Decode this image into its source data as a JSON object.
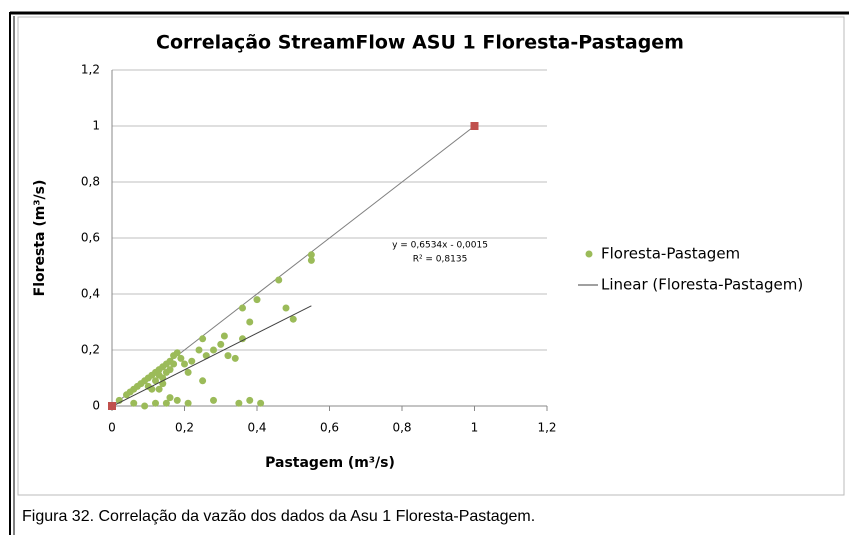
{
  "chart_data": {
    "type": "scatter",
    "title": "Correlação StreamFlow ASU 1 Floresta-Pastagem",
    "x_label": "Pastagem (m³/s)",
    "y_label": "Floresta (m³/s)",
    "xlim": [
      0,
      1.2
    ],
    "ylim": [
      0,
      1.2
    ],
    "xticks": [
      0,
      {
        "value": 0.2,
        "label": "0,2"
      },
      {
        "value": 0.4,
        "label": "0,4"
      },
      {
        "value": 0.6,
        "label": "0,6"
      },
      {
        "value": 0.8,
        "label": "0,8"
      },
      1,
      {
        "value": 1.2,
        "label": "1,2"
      }
    ],
    "yticks": [
      0,
      {
        "value": 0.2,
        "label": "0,2"
      },
      {
        "value": 0.4,
        "label": "0,4"
      },
      {
        "value": 0.6,
        "label": "0,6"
      },
      {
        "value": 0.8,
        "label": "0,8"
      },
      1,
      {
        "value": 1.2,
        "label": "1,2"
      }
    ],
    "grid": true,
    "legend": "right",
    "series": [
      {
        "name": "Floresta-Pastagem",
        "color": "#9bbb59",
        "x": [
          0.02,
          0.04,
          0.05,
          0.06,
          0.07,
          0.08,
          0.09,
          0.1,
          0.11,
          0.12,
          0.13,
          0.14,
          0.15,
          0.16,
          0.17,
          0.18,
          0.13,
          0.14,
          0.15,
          0.16,
          0.12,
          0.1,
          0.11,
          0.17,
          0.19,
          0.2,
          0.22,
          0.24,
          0.25,
          0.26,
          0.28,
          0.3,
          0.32,
          0.31,
          0.34,
          0.36,
          0.36,
          0.38,
          0.4,
          0.46,
          0.48,
          0.5,
          0.55,
          0.55,
          0.28,
          0.35,
          0.38,
          0.41,
          0.21,
          0.18,
          0.16,
          0.15,
          0.12,
          0.09,
          0.06,
          0.14,
          0.21,
          0.13,
          0.25
        ],
        "values": [
          0.02,
          0.04,
          0.05,
          0.06,
          0.07,
          0.08,
          0.09,
          0.1,
          0.11,
          0.12,
          0.13,
          0.14,
          0.15,
          0.16,
          0.18,
          0.19,
          0.11,
          0.1,
          0.12,
          0.13,
          0.09,
          0.07,
          0.06,
          0.15,
          0.17,
          0.15,
          0.16,
          0.2,
          0.24,
          0.18,
          0.2,
          0.22,
          0.18,
          0.25,
          0.17,
          0.24,
          0.35,
          0.3,
          0.38,
          0.45,
          0.35,
          0.31,
          0.54,
          0.52,
          0.02,
          0.01,
          0.02,
          0.01,
          0.01,
          0.02,
          0.03,
          0.01,
          0.01,
          0.0,
          0.01,
          0.08,
          0.12,
          0.06,
          0.09
        ]
      }
    ],
    "trendline": {
      "name": "Linear (Floresta-Pastagem)",
      "color": "#404040",
      "x": [
        0,
        0.55
      ],
      "values": [
        -0.0015,
        0.358
      ]
    },
    "reference_line": {
      "color": "#808080",
      "marker_color": "#c0504d",
      "x": [
        0,
        1
      ],
      "values": [
        0,
        1
      ]
    },
    "annotations": [
      "y = 0,6534x - 0,0015",
      "R² = 0,8135"
    ]
  },
  "caption": "Figura 32. Correlação da vazão dos dados da Asu 1 Floresta-Pastagem."
}
